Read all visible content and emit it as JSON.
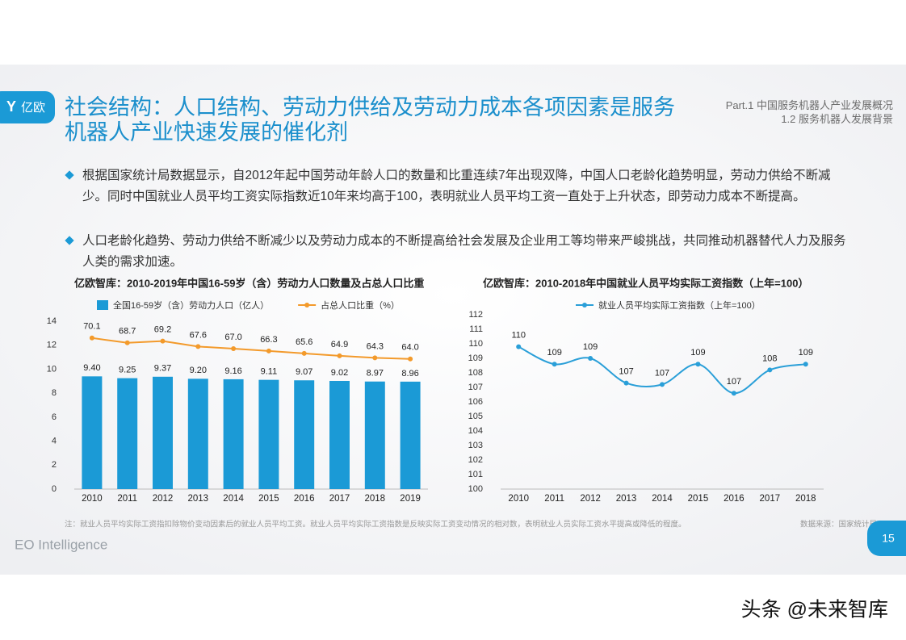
{
  "header": {
    "logo": "亿欧",
    "title": "社会结构：人口结构、劳动力供给及劳动力成本各项因素是服务机器人产业快速发展的催化剂",
    "part": "Part.1 中国服务机器人产业发展概况",
    "section": "1.2 服务机器人发展背景"
  },
  "bullets": [
    "根据国家统计局数据显示，自2012年起中国劳动年龄人口的数量和比重连续7年出现双降，中国人口老龄化趋势明显，劳动力供给不断减少。同时中国就业人员平均工资实际指数近10年来均高于100，表明就业人员平均工资一直处于上升状态，即劳动力成本不断提高。",
    "人口老龄化趋势、劳动力供给不断减少以及劳动力成本的不断提高给社会发展及企业用工等均带来严峻挑战，共同推动机器替代人力及服务人类的需求加速。"
  ],
  "chart_data": [
    {
      "type": "bar",
      "title": "亿欧智库：2010-2019年中国16-59岁（含）劳动力人口数量及占总人口比重",
      "categories": [
        "2010",
        "2011",
        "2012",
        "2013",
        "2014",
        "2015",
        "2016",
        "2017",
        "2018",
        "2019"
      ],
      "series": [
        {
          "name": "全国16-59岁（含）劳动力人口（亿人）",
          "color": "#1b9ad6",
          "values": [
            9.4,
            9.25,
            9.37,
            9.2,
            9.16,
            9.11,
            9.07,
            9.02,
            8.97,
            8.96
          ],
          "value_labels": [
            "9.40",
            "9.25",
            "9.37",
            "9.20",
            "9.16",
            "9.11",
            "9.07",
            "9.02",
            "8.97",
            "8.96"
          ]
        },
        {
          "name": "占总人口比重（%）",
          "color": "#f39a2b",
          "type": "line",
          "axis": "y2",
          "values": [
            70.1,
            68.7,
            69.2,
            67.6,
            67.0,
            66.3,
            65.6,
            64.9,
            64.3,
            64.0
          ],
          "value_labels": [
            "70.1",
            "68.7",
            "69.2",
            "67.6",
            "67.0",
            "66.3",
            "65.6",
            "64.9",
            "64.3",
            "64.0"
          ]
        }
      ],
      "ylim": [
        0,
        14
      ],
      "yticks": [
        0,
        2,
        4,
        6,
        8,
        10,
        12,
        14
      ],
      "y2lim": [
        26,
        75
      ],
      "smooth": false
    },
    {
      "type": "line",
      "title": "亿欧智库：2010-2018年中国就业人员平均实际工资指数（上年=100）",
      "categories": [
        "2010",
        "2011",
        "2012",
        "2013",
        "2014",
        "2015",
        "2016",
        "2017",
        "2018"
      ],
      "series": [
        {
          "name": "就业人员平均实际工资指数（上年=100）",
          "color": "#2a9fd8",
          "values": [
            109.8,
            108.6,
            109.0,
            107.3,
            107.2,
            108.6,
            106.6,
            108.2,
            108.6
          ],
          "value_labels": [
            "110",
            "109",
            "109",
            "107",
            "107",
            "109",
            "107",
            "108",
            "109"
          ]
        }
      ],
      "ylim": [
        100,
        112
      ],
      "yticks": [
        100,
        101,
        102,
        103,
        104,
        105,
        106,
        107,
        108,
        109,
        110,
        111,
        112
      ],
      "smooth": true
    }
  ],
  "footer": {
    "note": "注：就业人员平均实际工资指扣除物价变动因素后的就业人员平均工资。就业人员平均实际工资指数是反映实际工资变动情况的相对数，表明就业人员实际工资水平提高或降低的程度。",
    "source": "数据来源：国家统计局",
    "brand": "EO Intelligence",
    "page": "15"
  },
  "watermark": "头条 @未来智库"
}
